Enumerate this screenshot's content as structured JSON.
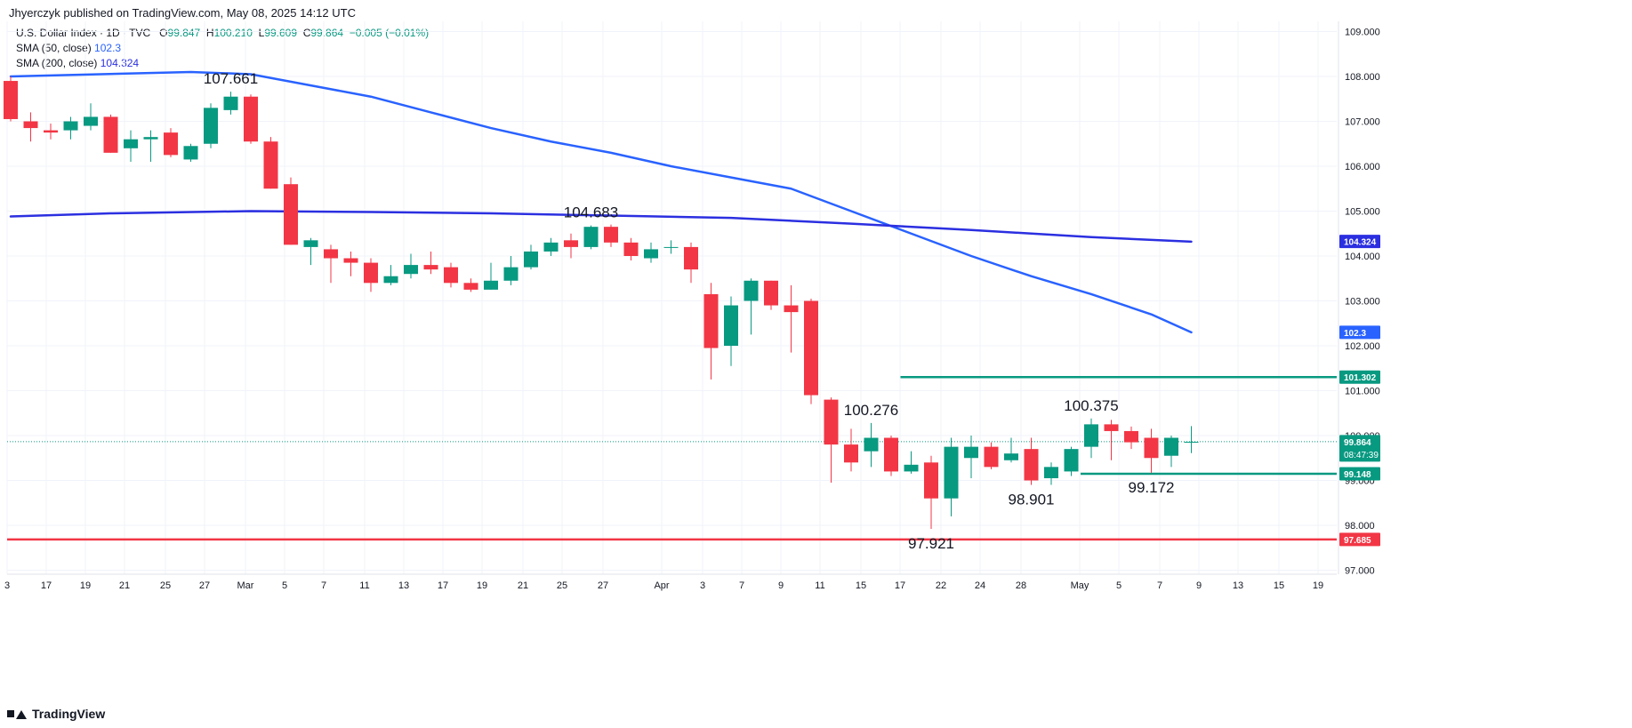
{
  "header": {
    "credit": "Jhyerczyk published on TradingView.com, May 08, 2025 14:12 UTC",
    "symbol": "U.S. Dollar Index · 1D · TVC",
    "ohlc": {
      "o_label": "O",
      "o": "99.847",
      "h_label": "H",
      "h": "100.210",
      "l_label": "L",
      "l": "99.609",
      "c_label": "C",
      "c": "99.864",
      "change": "−0.005 (−0.01%)"
    },
    "sma50_label": "SMA (50, close)",
    "sma50_value": "102.3",
    "sma200_label": "SMA (200, close)",
    "sma200_value": "104.324"
  },
  "footer": {
    "brand": "TradingView"
  },
  "colors": {
    "up": "#089981",
    "down": "#f23645",
    "sma50": "#2962ff",
    "sma200": "#2b2fe0",
    "grid": "#f0f3fa",
    "level_green": "#089981",
    "level_red": "#f23645",
    "last_price": "#089981"
  },
  "chart_data": {
    "type": "candlestick",
    "title": "U.S. Dollar Index · 1D · TVC",
    "ylim": [
      96.8,
      109.2
    ],
    "y_ticks": [
      "97.000",
      "98.000",
      "99.000",
      "100.000",
      "101.000",
      "102.000",
      "103.000",
      "104.000",
      "105.000",
      "106.000",
      "107.000",
      "108.000",
      "109.000"
    ],
    "x_ticks": [
      "3",
      "17",
      "19",
      "21",
      "25",
      "27",
      "Mar",
      "5",
      "7",
      "11",
      "13",
      "17",
      "19",
      "21",
      "25",
      "27",
      "Apr",
      "3",
      "7",
      "9",
      "11",
      "15",
      "17",
      "22",
      "24",
      "28",
      "May",
      "5",
      "7",
      "9",
      "13",
      "15",
      "19"
    ],
    "candles": [
      {
        "o": 107.9,
        "h": 108.0,
        "l": 107.0,
        "c": 107.05
      },
      {
        "o": 107.0,
        "h": 107.2,
        "l": 106.55,
        "c": 106.85
      },
      {
        "o": 106.8,
        "h": 106.95,
        "l": 106.6,
        "c": 106.75
      },
      {
        "o": 106.8,
        "h": 107.1,
        "l": 106.6,
        "c": 107.0
      },
      {
        "o": 106.9,
        "h": 107.4,
        "l": 106.8,
        "c": 107.1
      },
      {
        "o": 107.1,
        "h": 107.15,
        "l": 106.3,
        "c": 106.3
      },
      {
        "o": 106.4,
        "h": 106.8,
        "l": 106.1,
        "c": 106.6
      },
      {
        "o": 106.6,
        "h": 106.8,
        "l": 106.1,
        "c": 106.65
      },
      {
        "o": 106.75,
        "h": 106.85,
        "l": 106.2,
        "c": 106.25
      },
      {
        "o": 106.15,
        "h": 106.5,
        "l": 106.1,
        "c": 106.45
      },
      {
        "o": 106.5,
        "h": 107.4,
        "l": 106.4,
        "c": 107.3
      },
      {
        "o": 107.25,
        "h": 107.66,
        "l": 107.15,
        "c": 107.55
      },
      {
        "o": 107.55,
        "h": 107.6,
        "l": 106.5,
        "c": 106.55
      },
      {
        "o": 106.55,
        "h": 106.65,
        "l": 105.5,
        "c": 105.5
      },
      {
        "o": 105.6,
        "h": 105.75,
        "l": 104.25,
        "c": 104.25
      },
      {
        "o": 104.2,
        "h": 104.4,
        "l": 103.8,
        "c": 104.35
      },
      {
        "o": 104.15,
        "h": 104.25,
        "l": 103.4,
        "c": 103.95
      },
      {
        "o": 103.95,
        "h": 104.1,
        "l": 103.55,
        "c": 103.85
      },
      {
        "o": 103.85,
        "h": 103.95,
        "l": 103.2,
        "c": 103.4
      },
      {
        "o": 103.4,
        "h": 103.8,
        "l": 103.35,
        "c": 103.55
      },
      {
        "o": 103.6,
        "h": 104.05,
        "l": 103.5,
        "c": 103.8
      },
      {
        "o": 103.8,
        "h": 104.1,
        "l": 103.6,
        "c": 103.7
      },
      {
        "o": 103.75,
        "h": 103.85,
        "l": 103.3,
        "c": 103.4
      },
      {
        "o": 103.4,
        "h": 103.5,
        "l": 103.2,
        "c": 103.25
      },
      {
        "o": 103.25,
        "h": 103.85,
        "l": 103.25,
        "c": 103.45
      },
      {
        "o": 103.45,
        "h": 104.0,
        "l": 103.35,
        "c": 103.75
      },
      {
        "o": 103.75,
        "h": 104.25,
        "l": 103.7,
        "c": 104.1
      },
      {
        "o": 104.1,
        "h": 104.4,
        "l": 104.0,
        "c": 104.3
      },
      {
        "o": 104.35,
        "h": 104.5,
        "l": 103.95,
        "c": 104.2
      },
      {
        "o": 104.2,
        "h": 104.68,
        "l": 104.15,
        "c": 104.65
      },
      {
        "o": 104.65,
        "h": 104.7,
        "l": 104.2,
        "c": 104.3
      },
      {
        "o": 104.3,
        "h": 104.4,
        "l": 103.9,
        "c": 104.0
      },
      {
        "o": 103.95,
        "h": 104.3,
        "l": 103.85,
        "c": 104.15
      },
      {
        "o": 104.2,
        "h": 104.35,
        "l": 104.05,
        "c": 104.2
      },
      {
        "o": 104.2,
        "h": 104.3,
        "l": 103.4,
        "c": 103.7
      },
      {
        "o": 103.15,
        "h": 103.4,
        "l": 101.25,
        "c": 101.95
      },
      {
        "o": 102.0,
        "h": 103.1,
        "l": 101.55,
        "c": 102.9
      },
      {
        "o": 103.0,
        "h": 103.5,
        "l": 102.25,
        "c": 103.45
      },
      {
        "o": 103.45,
        "h": 103.45,
        "l": 102.8,
        "c": 102.9
      },
      {
        "o": 102.9,
        "h": 103.35,
        "l": 101.85,
        "c": 102.75
      },
      {
        "o": 103.0,
        "h": 103.05,
        "l": 100.7,
        "c": 100.9
      },
      {
        "o": 100.8,
        "h": 100.85,
        "l": 98.95,
        "c": 99.8
      },
      {
        "o": 99.8,
        "h": 100.15,
        "l": 99.2,
        "c": 99.4
      },
      {
        "o": 99.65,
        "h": 100.28,
        "l": 99.3,
        "c": 99.95
      },
      {
        "o": 99.95,
        "h": 100.0,
        "l": 99.1,
        "c": 99.2
      },
      {
        "o": 99.2,
        "h": 99.65,
        "l": 99.15,
        "c": 99.35
      },
      {
        "o": 99.4,
        "h": 99.55,
        "l": 97.92,
        "c": 98.6
      },
      {
        "o": 98.6,
        "h": 99.95,
        "l": 98.2,
        "c": 99.75
      },
      {
        "o": 99.5,
        "h": 100.0,
        "l": 99.05,
        "c": 99.75
      },
      {
        "o": 99.75,
        "h": 99.85,
        "l": 99.25,
        "c": 99.3
      },
      {
        "o": 99.45,
        "h": 99.95,
        "l": 99.4,
        "c": 99.6
      },
      {
        "o": 99.7,
        "h": 99.95,
        "l": 98.9,
        "c": 99.0
      },
      {
        "o": 99.05,
        "h": 99.4,
        "l": 98.9,
        "c": 99.3
      },
      {
        "o": 99.2,
        "h": 99.75,
        "l": 99.1,
        "c": 99.7
      },
      {
        "o": 99.75,
        "h": 100.38,
        "l": 99.5,
        "c": 100.25
      },
      {
        "o": 100.25,
        "h": 100.35,
        "l": 99.45,
        "c": 100.1
      },
      {
        "o": 100.1,
        "h": 100.2,
        "l": 99.7,
        "c": 99.85
      },
      {
        "o": 99.95,
        "h": 100.15,
        "l": 99.17,
        "c": 99.5
      },
      {
        "o": 99.55,
        "h": 100.0,
        "l": 99.3,
        "c": 99.95
      },
      {
        "o": 99.85,
        "h": 100.21,
        "l": 99.61,
        "c": 99.86
      }
    ],
    "series": [
      {
        "name": "SMA (50, close)",
        "values": [
          [
            0,
            108.0
          ],
          [
            9,
            108.1
          ],
          [
            12,
            108.05
          ],
          [
            15,
            107.8
          ],
          [
            18,
            107.55
          ],
          [
            21,
            107.2
          ],
          [
            24,
            106.85
          ],
          [
            27,
            106.55
          ],
          [
            30,
            106.3
          ],
          [
            33,
            106.0
          ],
          [
            36,
            105.75
          ],
          [
            39,
            105.5
          ],
          [
            42,
            105.0
          ],
          [
            45,
            104.5
          ],
          [
            48,
            104.0
          ],
          [
            51,
            103.55
          ],
          [
            54,
            103.15
          ],
          [
            57,
            102.7
          ],
          [
            59,
            102.3
          ]
        ]
      },
      {
        "name": "SMA (200, close)",
        "values": [
          [
            0,
            104.88
          ],
          [
            5,
            104.95
          ],
          [
            12,
            105.0
          ],
          [
            18,
            104.98
          ],
          [
            24,
            104.95
          ],
          [
            30,
            104.9
          ],
          [
            36,
            104.85
          ],
          [
            42,
            104.72
          ],
          [
            48,
            104.58
          ],
          [
            54,
            104.42
          ],
          [
            59,
            104.32
          ]
        ]
      }
    ],
    "price_annotations": [
      {
        "label": "107.661",
        "i": 11,
        "price": 107.66,
        "pos": "above"
      },
      {
        "label": "104.683",
        "i": 29,
        "price": 104.68,
        "pos": "above"
      },
      {
        "label": "100.276",
        "i": 43,
        "price": 100.28,
        "pos": "above"
      },
      {
        "label": "97.921",
        "i": 46,
        "price": 97.92,
        "pos": "below"
      },
      {
        "label": "98.901",
        "i": 51,
        "price": 98.9,
        "pos": "below"
      },
      {
        "label": "100.375",
        "i": 54,
        "price": 100.38,
        "pos": "above"
      },
      {
        "label": "99.172",
        "i": 57,
        "price": 99.17,
        "pos": "below"
      }
    ],
    "levels": [
      {
        "name": "resistance",
        "value": 101.302,
        "label": "101.302",
        "from_i": 45
      },
      {
        "name": "support",
        "value": 99.148,
        "label": "99.148",
        "from_i": 54
      },
      {
        "name": "low-line",
        "value": 97.685,
        "label": "97.685",
        "from_i": -1
      }
    ],
    "axis_badges": [
      {
        "name": "sma200-badge",
        "value": 104.324,
        "label": "104.324"
      },
      {
        "name": "sma50-badge",
        "value": 102.3,
        "label": "102.3"
      }
    ],
    "last_price": {
      "value": 99.864,
      "label": "99.864",
      "countdown": "08:47:39"
    }
  }
}
